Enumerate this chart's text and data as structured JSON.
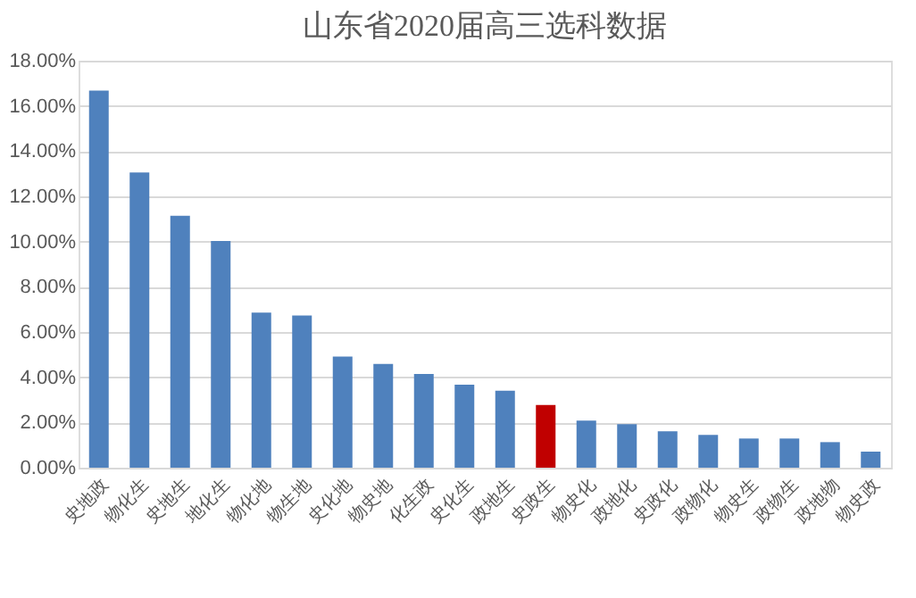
{
  "chart_data": {
    "type": "bar",
    "title": "山东省2020届高三选科数据",
    "categories": [
      "史地政",
      "物化生",
      "史地生",
      "地化生",
      "物化地",
      "物生地",
      "史化地",
      "物史地",
      "化生政",
      "史化生",
      "政地生",
      "史政生",
      "物史化",
      "政地化",
      "史政化",
      "政物化",
      "物史生",
      "政物生",
      "政地物",
      "物史政"
    ],
    "values": [
      16.68,
      13.06,
      11.14,
      10.03,
      6.86,
      6.73,
      4.91,
      4.59,
      4.14,
      3.67,
      3.4,
      2.77,
      2.08,
      1.92,
      1.61,
      1.45,
      1.29,
      1.29,
      1.13,
      0.71
    ],
    "colors": [
      "#4f81bd",
      "#4f81bd",
      "#4f81bd",
      "#4f81bd",
      "#4f81bd",
      "#4f81bd",
      "#4f81bd",
      "#4f81bd",
      "#4f81bd",
      "#4f81bd",
      "#4f81bd",
      "#c00000",
      "#4f81bd",
      "#4f81bd",
      "#4f81bd",
      "#4f81bd",
      "#4f81bd",
      "#4f81bd",
      "#4f81bd",
      "#4f81bd"
    ],
    "ylim": [
      0,
      18
    ],
    "yticks": [
      {
        "value": 0,
        "label": "0.00%"
      },
      {
        "value": 2,
        "label": "2.00%"
      },
      {
        "value": 4,
        "label": "4.00%"
      },
      {
        "value": 6,
        "label": "6.00%"
      },
      {
        "value": 8,
        "label": "8.00%"
      },
      {
        "value": 10,
        "label": "10.00%"
      },
      {
        "value": 12,
        "label": "12.00%"
      },
      {
        "value": 14,
        "label": "14.00%"
      },
      {
        "value": 16,
        "label": "16.00%"
      },
      {
        "value": 18,
        "label": "18.00%"
      }
    ],
    "grid": "y",
    "legend": false
  }
}
